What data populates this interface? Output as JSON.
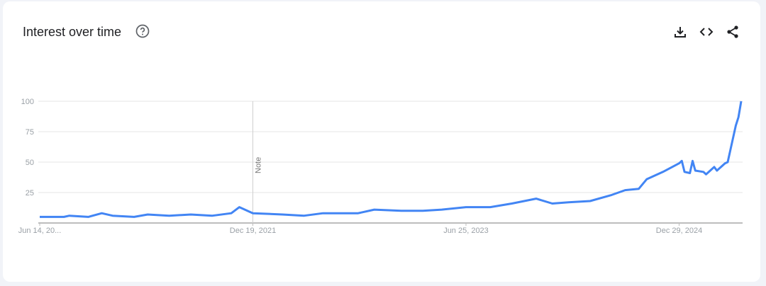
{
  "header": {
    "title": "Interest over time",
    "icons": [
      "help-icon",
      "download-icon",
      "embed-code-icon",
      "share-icon"
    ]
  },
  "chart_data": {
    "type": "line",
    "title": "Interest over time",
    "xlabel": "",
    "ylabel": "",
    "ylim": [
      0,
      100
    ],
    "yticks": [
      "100",
      "75",
      "50",
      "25"
    ],
    "xtick_labels": [
      {
        "date": "2020-06-14",
        "label": "Jun 14, 20..."
      },
      {
        "date": "2021-12-19",
        "label": "Dec 19, 2021"
      },
      {
        "date": "2023-06-25",
        "label": "Jun 25, 2023"
      },
      {
        "date": "2024-12-29",
        "label": "Dec 29, 2024"
      }
    ],
    "annotation": {
      "date": "2021-12-19",
      "label": "Note"
    },
    "grid": true,
    "line_color": "#4285f4",
    "points": [
      [
        "2020-06-14",
        5
      ],
      [
        "2020-08-16",
        5
      ],
      [
        "2020-08-30",
        6
      ],
      [
        "2020-10-18",
        5
      ],
      [
        "2020-11-22",
        8
      ],
      [
        "2020-12-20",
        6
      ],
      [
        "2021-02-14",
        5
      ],
      [
        "2021-03-21",
        7
      ],
      [
        "2021-05-16",
        6
      ],
      [
        "2021-07-11",
        7
      ],
      [
        "2021-09-05",
        6
      ],
      [
        "2021-10-24",
        8
      ],
      [
        "2021-11-14",
        13
      ],
      [
        "2021-12-19",
        8
      ],
      [
        "2022-03-06",
        7
      ],
      [
        "2022-05-01",
        6
      ],
      [
        "2022-06-19",
        8
      ],
      [
        "2022-09-18",
        8
      ],
      [
        "2022-10-30",
        11
      ],
      [
        "2023-01-08",
        10
      ],
      [
        "2023-03-05",
        10
      ],
      [
        "2023-04-23",
        11
      ],
      [
        "2023-06-25",
        13
      ],
      [
        "2023-08-27",
        13
      ],
      [
        "2023-10-22",
        16
      ],
      [
        "2023-12-24",
        20
      ],
      [
        "2024-02-04",
        16
      ],
      [
        "2024-03-17",
        17
      ],
      [
        "2024-05-12",
        18
      ],
      [
        "2024-07-07",
        23
      ],
      [
        "2024-08-11",
        27
      ],
      [
        "2024-09-15",
        28
      ],
      [
        "2024-10-06",
        36
      ],
      [
        "2024-11-17",
        42
      ],
      [
        "2024-12-29",
        49
      ],
      [
        "2025-01-05",
        51
      ],
      [
        "2025-01-12",
        42
      ],
      [
        "2025-01-26",
        41
      ],
      [
        "2025-02-02",
        51
      ],
      [
        "2025-02-09",
        43
      ],
      [
        "2025-03-02",
        42
      ],
      [
        "2025-03-09",
        40
      ],
      [
        "2025-03-30",
        46
      ],
      [
        "2025-04-06",
        43
      ],
      [
        "2025-04-27",
        49
      ],
      [
        "2025-05-04",
        50
      ],
      [
        "2025-05-11",
        60
      ],
      [
        "2025-05-25",
        80
      ],
      [
        "2025-06-01",
        87
      ],
      [
        "2025-06-08",
        100
      ]
    ]
  }
}
